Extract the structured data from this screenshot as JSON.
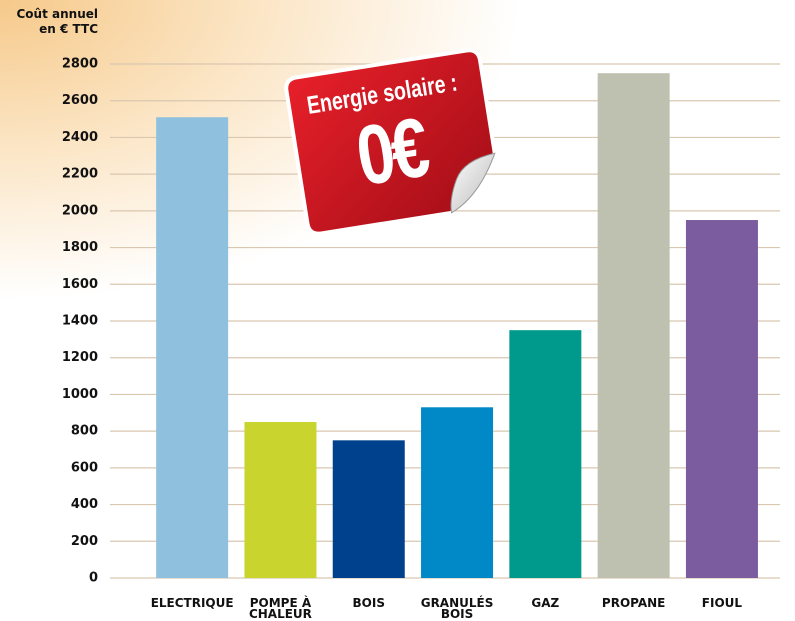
{
  "chart_data": {
    "type": "bar",
    "y_axis_label": "Coût annuel en € TTC",
    "annotations": [
      "Energie solaire :",
      "0€"
    ],
    "categories": [
      "ELECTRIQUE",
      "POMPE À CHALEUR",
      "BOIS",
      "GRANULÉS BOIS",
      "GAZ",
      "PROPANE",
      "FIOUL"
    ],
    "values": [
      2510,
      850,
      750,
      930,
      1350,
      2750,
      1950
    ],
    "colors": [
      "#8fc1de",
      "#c9d42f",
      "#00418e",
      "#0088c7",
      "#009a8c",
      "#bfc1b0",
      "#7b5c9e"
    ],
    "ylim": [
      0,
      2800
    ],
    "yticks": [
      0,
      200,
      400,
      600,
      800,
      1000,
      1200,
      1400,
      1600,
      1800,
      2000,
      2200,
      2400,
      2600,
      2800
    ],
    "grid": true
  }
}
